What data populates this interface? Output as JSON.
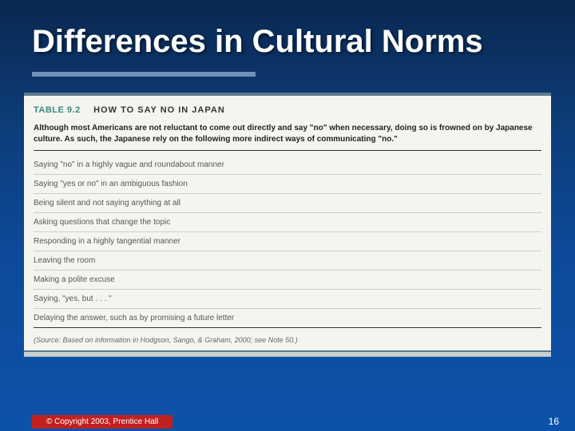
{
  "slide": {
    "title": "Differences in Cultural Norms",
    "title_color": "#ffffff",
    "underline_color": "#7090c0",
    "background_gradient": [
      "#0a2850",
      "#0d3d7a",
      "#0d4a9a",
      "#0d52aa"
    ]
  },
  "table": {
    "label": "TABLE 9.2",
    "label_color": "#3a8a7a",
    "title": "HOW TO SAY NO IN JAPAN",
    "intro": "Although most Americans are not reluctant to come out directly and say \"no\" when necessary, doing so is frowned on by Japanese culture. As such, the Japanese rely on the following more indirect ways of communicating \"no.\"",
    "items": [
      "Saying \"no\" in a highly vague and roundabout manner",
      "Saying \"yes or no\" in an ambiguous fashion",
      "Being silent and not saying anything at all",
      "Asking questions that change the topic",
      "Responding in a highly tangential manner",
      "Leaving the room",
      "Making a polite excuse",
      "Saying, \"yes, but . . . \"",
      "Delaying the answer, such as by promising a future letter"
    ],
    "source": "(Source: Based on information in Hodgson, Sango, & Graham, 2000; see Note 50.)",
    "box_bg": "#f5f5f0",
    "rule_color": "#5a7a8a"
  },
  "footer": {
    "copyright": "© Copyright 2003, Prentice Hall",
    "copyright_bg": "#c02020",
    "page_number": "16"
  }
}
